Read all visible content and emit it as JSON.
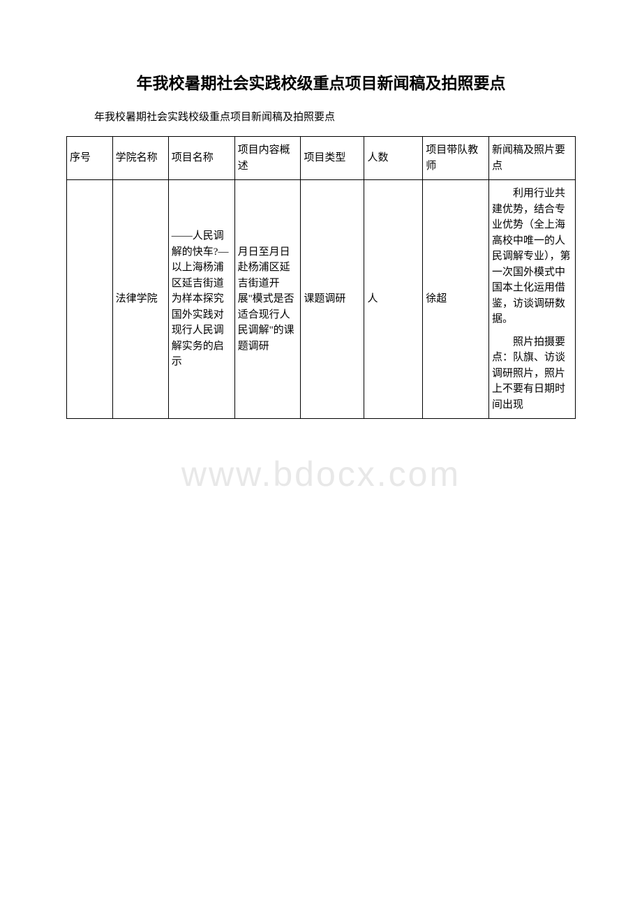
{
  "page": {
    "title": "年我校暑期社会实践校级重点项目新闻稿及拍照要点",
    "subtitle": "年我校暑期社会实践校级重点项目新闻稿及拍照要点"
  },
  "watermark": "www.bdocx.com",
  "table": {
    "headers": {
      "col1": "序号",
      "col2": "学院名称",
      "col3": "项目名称",
      "col4": "项目内容概述",
      "col5": "项目类型",
      "col6": "人数",
      "col7": "项目带队教师",
      "col8": "新闻稿及照片要点"
    },
    "row1": {
      "col1": "",
      "col2": "法律学院",
      "col3": "——人民调解的快车?—以上海杨浦区延吉街道为样本探究国外实践对现行人民调解实务的启示",
      "col4": "月日至月日赴杨浦区延吉街道开展\"模式是否适合现行人民调解\"的课题调研",
      "col5": "课题调研",
      "col6": "人",
      "col7": "徐超",
      "col8_p1": "利用行业共建优势，结合专业优势（全上海高校中唯一的人民调解专业），第一次国外模式中国本土化运用借鉴，访谈调研数据。",
      "col8_p2": "照片拍摄要点：队旗、访谈调研照片，照片上不要有日期时间出现"
    }
  },
  "colors": {
    "background": "#ffffff",
    "border": "#000000",
    "text": "#000000",
    "watermark": "#e8e8e8"
  }
}
